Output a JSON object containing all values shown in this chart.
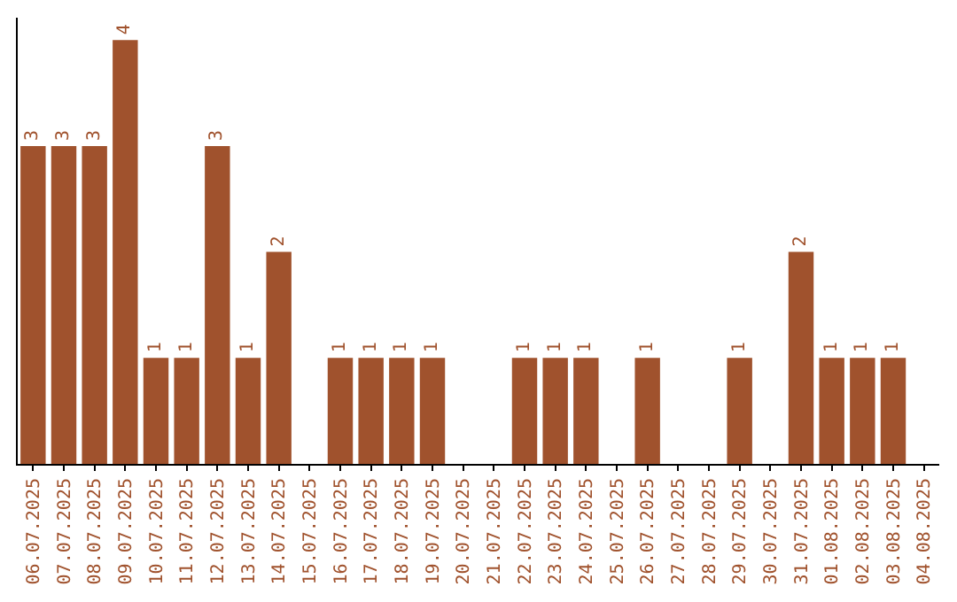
{
  "chart_data": {
    "type": "bar",
    "categories": [
      "06.07.2025",
      "07.07.2025",
      "08.07.2025",
      "09.07.2025",
      "10.07.2025",
      "11.07.2025",
      "12.07.2025",
      "13.07.2025",
      "14.07.2025",
      "15.07.2025",
      "16.07.2025",
      "17.07.2025",
      "18.07.2025",
      "19.07.2025",
      "20.07.2025",
      "21.07.2025",
      "22.07.2025",
      "23.07.2025",
      "24.07.2025",
      "25.07.2025",
      "26.07.2025",
      "27.07.2025",
      "28.07.2025",
      "29.07.2025",
      "30.07.2025",
      "31.07.2025",
      "01.08.2025",
      "02.08.2025",
      "03.08.2025",
      "04.08.2025"
    ],
    "values": [
      3,
      3,
      3,
      4,
      1,
      1,
      3,
      1,
      2,
      null,
      1,
      1,
      1,
      1,
      null,
      null,
      1,
      1,
      1,
      null,
      1,
      null,
      null,
      1,
      null,
      2,
      1,
      1,
      1,
      null
    ],
    "color": "#a0522d",
    "data_labels": true,
    "grid": false,
    "legend": false,
    "tick_labels": "x"
  }
}
